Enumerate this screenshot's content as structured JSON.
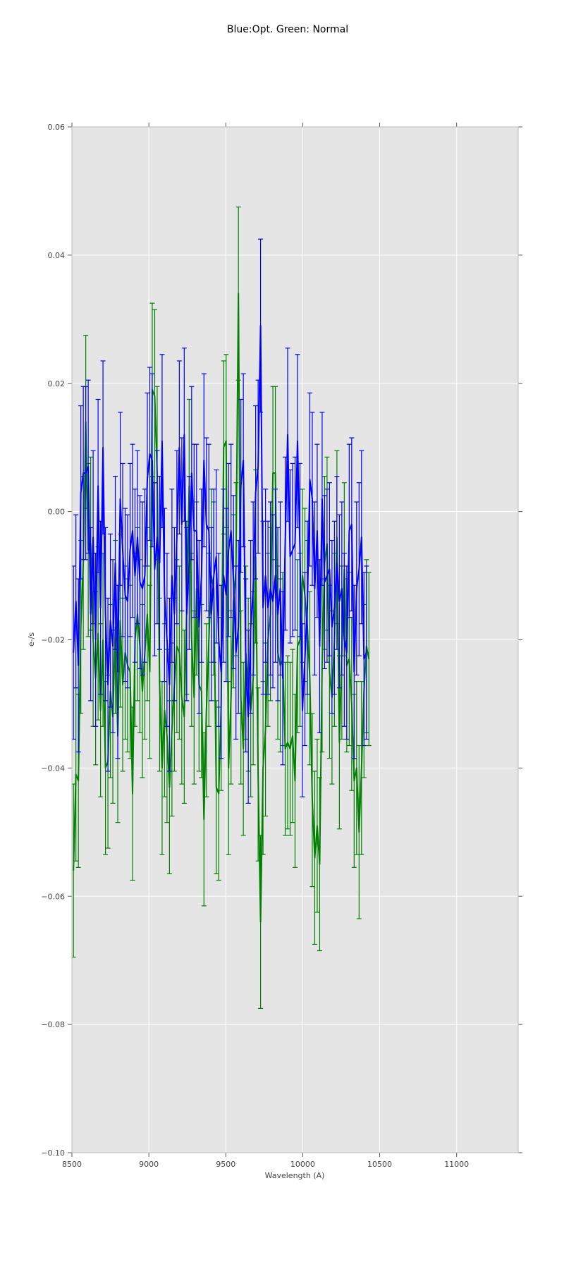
{
  "chart_data": {
    "type": "line",
    "title": "Blue:Opt. Green: Normal",
    "xlabel": "Wavelength (A)",
    "ylabel": "e-/s",
    "xlim": [
      8500,
      11400
    ],
    "ylim": [
      -0.1,
      0.06
    ],
    "x_ticks": [
      8500,
      9000,
      9500,
      10000,
      10500,
      11000
    ],
    "x_tick_labels": [
      "8500",
      "9000",
      "9500",
      "10000",
      "10500",
      "11000"
    ],
    "y_ticks": [
      -0.1,
      -0.08,
      -0.06,
      -0.04,
      -0.02,
      0.0,
      0.02,
      0.04,
      0.06
    ],
    "y_tick_labels": [
      "−0.10",
      "−0.08",
      "−0.06",
      "−0.04",
      "−0.02",
      "0.00",
      "0.02",
      "0.04",
      "0.06"
    ],
    "grid": true,
    "background": "#e5e5e5",
    "error_bars": true,
    "error_bar_halfwidth": 0.0135,
    "x_start": 8510,
    "x_step": 16,
    "series": [
      {
        "color": "#0000ff",
        "y": [
          -0.022,
          -0.014,
          -0.024,
          0.003,
          0.006,
          0.006,
          0.007,
          -0.016,
          -0.004,
          -0.02,
          0.004,
          -0.015,
          0.01,
          -0.016,
          -0.027,
          -0.017,
          -0.021,
          -0.008,
          -0.025,
          0.002,
          -0.006,
          -0.013,
          -0.014,
          -0.006,
          -0.003,
          -0.01,
          -0.004,
          -0.011,
          -0.012,
          -0.01,
          0.005,
          0.009,
          0.008,
          -0.009,
          -0.004,
          -0.008,
          0.011,
          -0.013,
          -0.02,
          -0.027,
          -0.01,
          -0.016,
          -0.004,
          0.01,
          -0.002,
          0.012,
          -0.016,
          -0.008,
          0.006,
          -0.003,
          -0.003,
          -0.018,
          -0.01,
          0.008,
          -0.002,
          -0.003,
          -0.016,
          -0.01,
          -0.007,
          -0.02,
          -0.025,
          -0.01,
          -0.013,
          -0.006,
          -0.003,
          -0.011,
          -0.022,
          -0.018,
          0.004,
          0.008,
          -0.024,
          -0.032,
          -0.018,
          -0.012,
          0.003,
          0.007,
          0.029,
          -0.015,
          -0.01,
          -0.015,
          -0.012,
          -0.014,
          -0.01,
          -0.016,
          -0.012,
          -0.026,
          -0.005,
          0.012,
          -0.007,
          -0.006,
          -0.005,
          0.011,
          -0.006,
          -0.031,
          -0.023,
          -0.015,
          0.005,
          0.002,
          -0.012,
          -0.003,
          -0.021,
          0.002,
          -0.011,
          -0.01,
          -0.009,
          -0.018,
          -0.015,
          -0.008,
          -0.014,
          -0.012,
          -0.02,
          -0.022,
          -0.003,
          -0.002,
          -0.025,
          -0.012,
          -0.009,
          -0.004,
          -0.023,
          -0.022
        ]
      },
      {
        "color": "#008000",
        "y": [
          -0.056,
          -0.041,
          -0.042,
          -0.018,
          -0.008,
          0.014,
          -0.006,
          -0.005,
          -0.02,
          -0.026,
          -0.019,
          -0.031,
          -0.02,
          -0.04,
          -0.039,
          -0.028,
          -0.032,
          -0.018,
          -0.035,
          -0.017,
          -0.027,
          -0.022,
          -0.024,
          -0.025,
          -0.044,
          -0.02,
          -0.016,
          -0.021,
          -0.028,
          -0.022,
          -0.016,
          -0.025,
          0.019,
          0.018,
          0.006,
          -0.027,
          -0.04,
          -0.031,
          -0.035,
          -0.043,
          -0.034,
          -0.027,
          -0.021,
          -0.022,
          -0.029,
          -0.032,
          -0.015,
          0.004,
          -0.02,
          -0.029,
          -0.012,
          -0.027,
          -0.028,
          -0.048,
          -0.031,
          -0.02,
          -0.01,
          -0.012,
          -0.043,
          -0.044,
          -0.03,
          0.01,
          0.011,
          -0.04,
          -0.029,
          -0.014,
          -0.009,
          0.034,
          -0.029,
          -0.037,
          -0.022,
          -0.027,
          -0.031,
          -0.026,
          -0.007,
          -0.041,
          -0.064,
          -0.04,
          -0.034,
          -0.02,
          -0.016,
          0.006,
          0.006,
          -0.022,
          -0.024,
          -0.023,
          -0.037,
          -0.036,
          -0.037,
          -0.035,
          -0.042,
          -0.021,
          -0.02,
          -0.01,
          -0.013,
          -0.018,
          -0.026,
          -0.045,
          -0.054,
          -0.049,
          -0.055,
          -0.024,
          -0.008,
          -0.005,
          -0.025,
          -0.029,
          -0.02,
          -0.004,
          -0.036,
          -0.022,
          -0.009,
          -0.024,
          -0.023,
          -0.03,
          -0.042,
          -0.04,
          -0.05,
          -0.04,
          -0.028,
          -0.021,
          -0.023
        ]
      }
    ]
  }
}
